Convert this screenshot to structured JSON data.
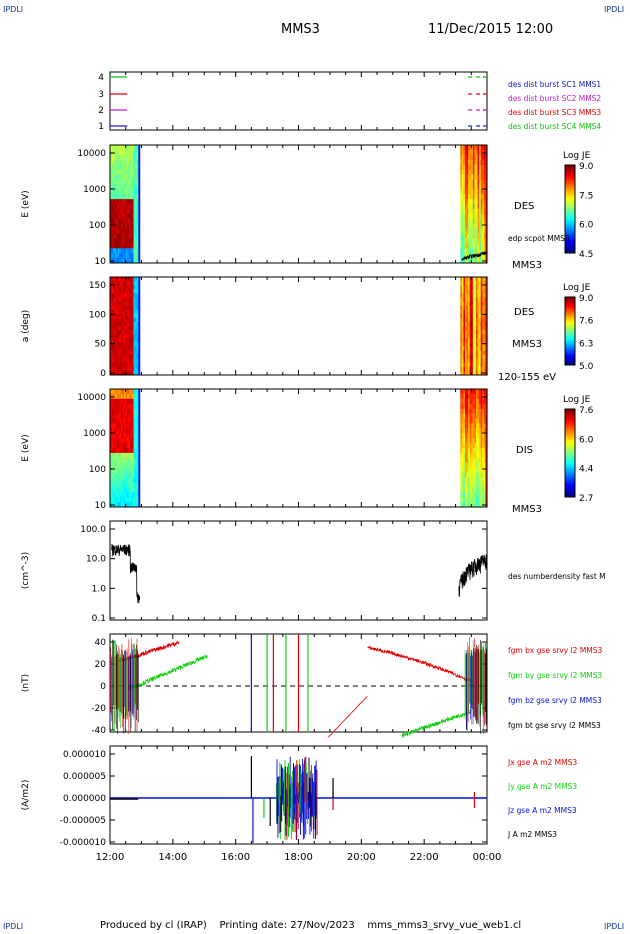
{
  "corner_left": "IPDLI",
  "corner_right": "IPDLI",
  "header": {
    "spacecraft": "MMS3",
    "datetime": "11/Dec/2015 12:00"
  },
  "footer": {
    "produced": "Produced by cl (IRAP)",
    "printing": "Printing date: 27/Nov/2023",
    "file": "mms_mms3_srvy_vue_web1.cl"
  },
  "colors": {
    "mms1": "#1020c0",
    "mms2": "#c020c0",
    "mms3": "#e00000",
    "mms4": "#10c010",
    "bx": "#e00000",
    "by": "#10d010",
    "bz": "#0010e0",
    "bt": "#000000"
  },
  "chart_data": [
    {
      "type": "line",
      "panel": "burst-availability",
      "yticks": [
        "4",
        "3",
        "2",
        "1"
      ],
      "legend": [
        {
          "label": "des dist burst SC1 MMS1",
          "color": "#1020c0"
        },
        {
          "label": "des dist burst SC2 MMS2",
          "color": "#c020c0"
        },
        {
          "label": "des dist burst SC3 MMS3",
          "color": "#e00000"
        },
        {
          "label": "des dist burst SC4 MMS4",
          "color": "#10c010"
        }
      ],
      "intervals": [
        {
          "sc": 4,
          "from": 12.0,
          "to": 12.55
        },
        {
          "sc": 3,
          "from": 12.0,
          "to": 12.55
        },
        {
          "sc": 2,
          "from": 12.0,
          "to": 12.55
        },
        {
          "sc": 1,
          "from": 12.0,
          "to": 12.55
        },
        {
          "sc": 4,
          "from": 23.4,
          "to": 24.0
        },
        {
          "sc": 3,
          "from": 23.4,
          "to": 24.0
        },
        {
          "sc": 2,
          "from": 23.4,
          "to": 24.0
        },
        {
          "sc": 1,
          "from": 23.4,
          "to": 24.0
        }
      ]
    },
    {
      "type": "heatmap",
      "panel": "des-energy",
      "ylabel": "E (eV)",
      "yticks": [
        "10000",
        "1000",
        "100",
        "10"
      ],
      "right_labels": [
        "DES",
        "edp scpot MMS3",
        "MMS3"
      ],
      "colorbar": {
        "title": "Log JE",
        "ticks": [
          "9.0",
          "7.5",
          "6.0",
          "4.5"
        ]
      }
    },
    {
      "type": "heatmap",
      "panel": "des-pitch",
      "ylabel": "a (deg)",
      "yticks": [
        "150",
        "100",
        "50",
        "0"
      ],
      "right_labels": [
        "DES",
        "MMS3",
        "120-155 eV"
      ],
      "colorbar": {
        "title": "Log JE",
        "ticks": [
          "9.0",
          "7.6",
          "6.3",
          "5.0"
        ]
      }
    },
    {
      "type": "heatmap",
      "panel": "dis-energy",
      "ylabel": "E (eV)",
      "yticks": [
        "10000",
        "1000",
        "100",
        "10"
      ],
      "right_labels": [
        "DIS",
        "MMS3"
      ],
      "colorbar": {
        "title": "Log JE",
        "ticks": [
          "7.6",
          "6.0",
          "4.4",
          "2.7"
        ]
      }
    },
    {
      "type": "line",
      "panel": "density",
      "ylabel": "(cm^-3)",
      "yticks": [
        "100.0",
        "10.0",
        "1.0",
        "0.1"
      ],
      "legend": [
        {
          "label": "des numberdensity fast M",
          "color": "#000000"
        }
      ]
    },
    {
      "type": "line",
      "panel": "magnetic-field",
      "ylabel": "(nT)",
      "yticks": [
        "40",
        "20",
        "0",
        "-20",
        "-40"
      ],
      "legend": [
        {
          "label": "fgm bx gse srvy l2 MMS3",
          "color": "#e00000"
        },
        {
          "label": "fgm by gse srvy l2 MMS3",
          "color": "#10d010"
        },
        {
          "label": "fgm bz gse srvy l2 MMS3",
          "color": "#0010e0"
        },
        {
          "label": "fgm bt gse srvy l2 MMS3",
          "color": "#000000"
        }
      ]
    },
    {
      "type": "line",
      "panel": "current-density",
      "ylabel": "(A/m2)",
      "yticks": [
        "0.000010",
        "0.000005",
        "0.000000",
        "-0.000005",
        "-0.000010"
      ],
      "legend": [
        {
          "label": "Jx gse A m2 MMS3",
          "color": "#e00000"
        },
        {
          "label": "Jy gse A m2 MMS3",
          "color": "#10d010"
        },
        {
          "label": "Jz gse A m2 MMS3",
          "color": "#0010e0"
        },
        {
          "label": "J A m2 MMS3",
          "color": "#000000"
        }
      ],
      "xticks": [
        "12:00",
        "14:00",
        "16:00",
        "18:00",
        "20:00",
        "22:00",
        "00:00"
      ]
    }
  ]
}
